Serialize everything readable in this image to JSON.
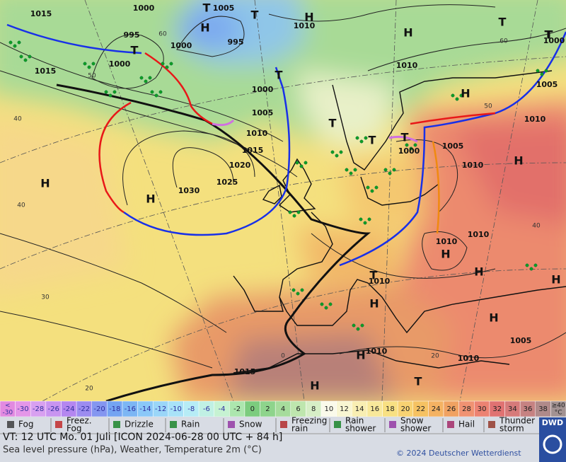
{
  "isobar_labels": [
    "1015",
    "1000",
    "1005",
    "995",
    "1000",
    "1015",
    "995",
    "1000",
    "1010",
    "1000",
    "1010",
    "1005",
    "1000",
    "1005",
    "1010",
    "1015",
    "1020",
    "1025",
    "1030",
    "1005",
    "1010",
    "1010",
    "1000",
    "1010",
    "1010",
    "1010",
    "1010",
    "1010",
    "1005",
    "1015"
  ],
  "grid_labels": [
    "60",
    "50",
    "40",
    "40",
    "30",
    "20",
    "0",
    "20",
    "40",
    "60",
    "50"
  ],
  "pressure_centers": [
    "H",
    "T",
    "T",
    "H",
    "H",
    "T",
    "T",
    "T",
    "T",
    "H",
    "T",
    "T",
    "T",
    "H",
    "H",
    "H",
    "H",
    "H",
    "H",
    "T",
    "H",
    "H",
    "H",
    "T",
    "H",
    "T"
  ],
  "legend": {
    "scale": [
      {
        "top": "<",
        "bottom": "-30",
        "color": "#e28ae0"
      },
      {
        "label": "-30",
        "color": "#e496e8"
      },
      {
        "label": "-28",
        "color": "#d8a0f0"
      },
      {
        "label": "-26",
        "color": "#c894f0"
      },
      {
        "label": "-24",
        "color": "#b486f0"
      },
      {
        "label": "-22",
        "color": "#9c8cf0"
      },
      {
        "label": "-20",
        "color": "#8496f0"
      },
      {
        "label": "-18",
        "color": "#74a4f2"
      },
      {
        "label": "-16",
        "color": "#7cb6f4"
      },
      {
        "label": "-14",
        "color": "#8ac8f8"
      },
      {
        "label": "-12",
        "color": "#9ad6f8"
      },
      {
        "label": "-10",
        "color": "#a8e2f8"
      },
      {
        "label": "-8",
        "color": "#b6ecf6"
      },
      {
        "label": "-6",
        "color": "#c0f0e4"
      },
      {
        "label": "-4",
        "color": "#c6f2d2"
      },
      {
        "label": "-2",
        "color": "#ace6ae"
      },
      {
        "label": "0",
        "color": "#7ccc7e"
      },
      {
        "label": "2",
        "color": "#8ed48c"
      },
      {
        "label": "4",
        "color": "#a6dc9c"
      },
      {
        "label": "6",
        "color": "#bee6ae"
      },
      {
        "label": "8",
        "color": "#d6eec6"
      },
      {
        "label": "10",
        "color": "#fafaea"
      },
      {
        "label": "12",
        "color": "#f8f6d2"
      },
      {
        "label": "14",
        "color": "#f8eeb2"
      },
      {
        "label": "16",
        "color": "#f8e89a"
      },
      {
        "label": "18",
        "color": "#f8e082"
      },
      {
        "label": "20",
        "color": "#f8d272"
      },
      {
        "label": "22",
        "color": "#f6c262"
      },
      {
        "label": "24",
        "color": "#f4b262"
      },
      {
        "label": "26",
        "color": "#f0a262"
      },
      {
        "label": "28",
        "color": "#f09272"
      },
      {
        "label": "30",
        "color": "#ec8272"
      },
      {
        "label": "32",
        "color": "#e07272"
      },
      {
        "label": "34",
        "color": "#d67a7a"
      },
      {
        "label": "36",
        "color": "#c68282"
      },
      {
        "label": "38",
        "color": "#b08a8a"
      },
      {
        "top": "≥40",
        "bottom": "°C",
        "color": "#a29292"
      }
    ],
    "weather": [
      {
        "lines": [
          "Fog"
        ]
      },
      {
        "lines": [
          "Freez.",
          "Fog"
        ]
      },
      {
        "lines": [
          "Drizzle"
        ]
      },
      {
        "lines": [
          "Rain"
        ]
      },
      {
        "lines": [
          "Snow"
        ]
      },
      {
        "lines": [
          "Freezing",
          "rain"
        ]
      },
      {
        "lines": [
          "Rain",
          "shower"
        ]
      },
      {
        "lines": [
          "Snow",
          "shower"
        ]
      },
      {
        "lines": [
          "Hail"
        ]
      },
      {
        "lines": [
          "Thunder",
          "storm"
        ]
      }
    ]
  },
  "footer": {
    "valid_time": "VT: 12 UTC Mo.  01 Juli [ICON 2024-06-28  00 UTC + 84 h]",
    "description": "Sea level pressure (hPa), Weather, Temperature 2m (°C)",
    "copyright": "© 2024 Deutscher Wetterdienst",
    "logo": "DWD"
  }
}
